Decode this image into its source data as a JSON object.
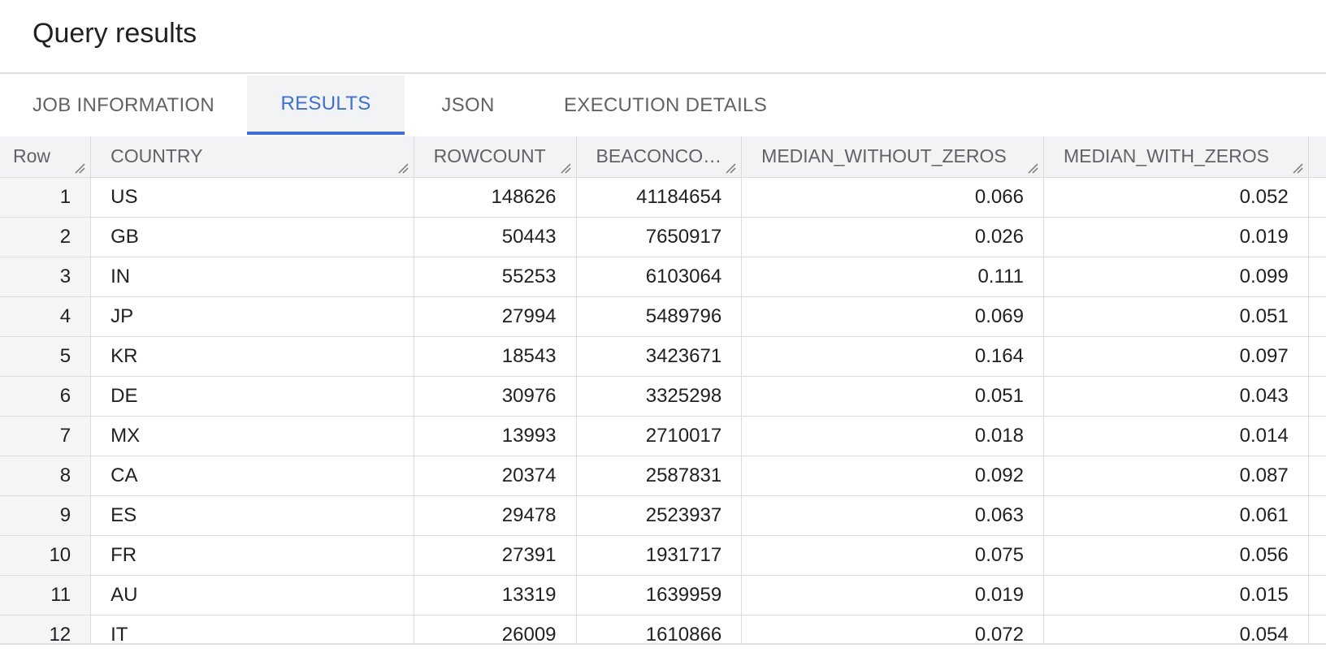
{
  "page": {
    "title": "Query results"
  },
  "tabs": [
    {
      "label": "JOB INFORMATION",
      "active": false
    },
    {
      "label": "RESULTS",
      "active": true
    },
    {
      "label": "JSON",
      "active": false
    },
    {
      "label": "EXECUTION DETAILS",
      "active": false
    }
  ],
  "colors": {
    "accent": "#3f6fd1",
    "header_bg": "#f1f3f4",
    "row_num_bg": "#f5f5f5",
    "border": "#dadce0"
  },
  "table": {
    "columns": [
      "Row",
      "COUNTRY",
      "ROWCOUNT",
      "BEACONCO…",
      "MEDIAN_WITHOUT_ZEROS",
      "MEDIAN_WITH_ZEROS"
    ],
    "rows": [
      [
        "1",
        "US",
        "148626",
        "41184654",
        "0.066",
        "0.052"
      ],
      [
        "2",
        "GB",
        "50443",
        "7650917",
        "0.026",
        "0.019"
      ],
      [
        "3",
        "IN",
        "55253",
        "6103064",
        "0.111",
        "0.099"
      ],
      [
        "4",
        "JP",
        "27994",
        "5489796",
        "0.069",
        "0.051"
      ],
      [
        "5",
        "KR",
        "18543",
        "3423671",
        "0.164",
        "0.097"
      ],
      [
        "6",
        "DE",
        "30976",
        "3325298",
        "0.051",
        "0.043"
      ],
      [
        "7",
        "MX",
        "13993",
        "2710017",
        "0.018",
        "0.014"
      ],
      [
        "8",
        "CA",
        "20374",
        "2587831",
        "0.092",
        "0.087"
      ],
      [
        "9",
        "ES",
        "29478",
        "2523937",
        "0.063",
        "0.061"
      ],
      [
        "10",
        "FR",
        "27391",
        "1931717",
        "0.075",
        "0.056"
      ],
      [
        "11",
        "AU",
        "13319",
        "1639959",
        "0.019",
        "0.015"
      ],
      [
        "12",
        "IT",
        "26009",
        "1610866",
        "0.072",
        "0.054"
      ]
    ]
  }
}
